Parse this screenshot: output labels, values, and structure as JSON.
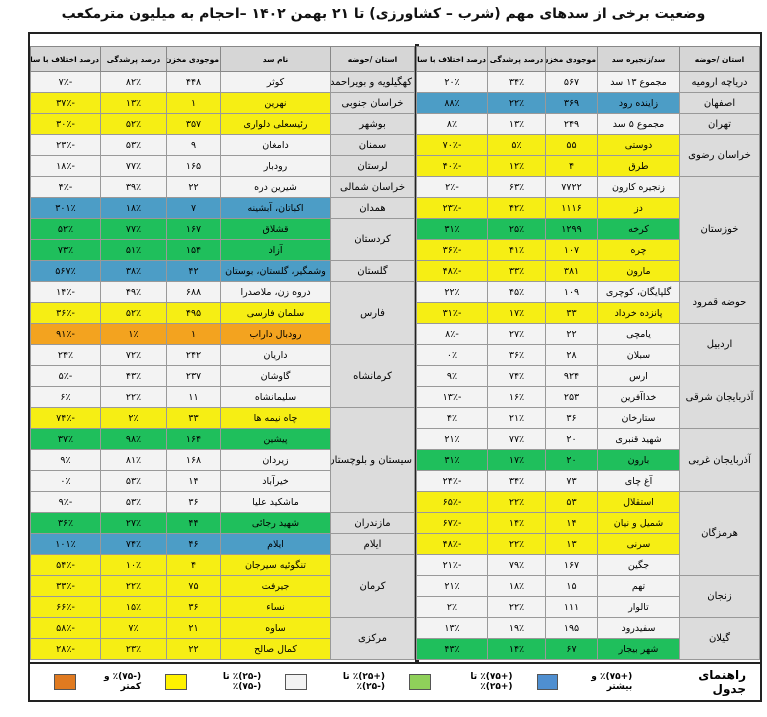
{
  "title": "وضعیت برخی از سدهای مهم (شرب – کشاورزی) تا ۲۱ بهمن ۱۴۰۲ –احجام به میلیون مترمکعب",
  "colors": {
    "white": "#f3f3f3",
    "yellow": "#f6ee14",
    "green": "#1fbf5c",
    "blue": "#4c9dc6",
    "orange": "#f3a31f"
  },
  "right_table": {
    "headers": [
      "استان /حوضه",
      "سد/زنجیره سد",
      "موجودی مخزن",
      "درصد پرشدگی",
      "درصد اختلاف با سال قبل"
    ],
    "groups": [
      {
        "province": "دریاچه ارومیه",
        "dams": [
          {
            "name": "مجموع ۱۳ سد",
            "storage": "۵۶۷",
            "fill": "۳۴٪",
            "diff": "۲۰٪",
            "color": "white"
          }
        ]
      },
      {
        "province": "اصفهان",
        "dams": [
          {
            "name": "زاینده رود",
            "storage": "۳۶۹",
            "fill": "۲۲٪",
            "diff": "۸۸٪",
            "color": "blue"
          }
        ]
      },
      {
        "province": "تهران",
        "dams": [
          {
            "name": "مجموع ۵ سد",
            "storage": "۲۴۹",
            "fill": "۱۳٪",
            "diff": "۸٪",
            "color": "white"
          }
        ]
      },
      {
        "province": "خراسان رضوی",
        "dams": [
          {
            "name": "دوستی",
            "storage": "۵۵",
            "fill": "۵٪",
            "diff": "-۷۰٪",
            "color": "yellow"
          },
          {
            "name": "طرق",
            "storage": "۴",
            "fill": "۱۲٪",
            "diff": "-۴۰٪",
            "color": "yellow"
          }
        ]
      },
      {
        "province": "خوزستان",
        "dams": [
          {
            "name": "زنجیره کارون",
            "storage": "۷۷۲۲",
            "fill": "۶۳٪",
            "diff": "-۲٪",
            "color": "white"
          },
          {
            "name": "دز",
            "storage": "۱۱۱۶",
            "fill": "۴۲٪",
            "diff": "-۲۳٪",
            "color": "yellow"
          },
          {
            "name": "کرخه",
            "storage": "۱۲۹۹",
            "fill": "۲۵٪",
            "diff": "۳۱٪",
            "color": "green"
          },
          {
            "name": "چره",
            "storage": "۱۰۷",
            "fill": "۴۱٪",
            "diff": "-۳۶٪",
            "color": "yellow"
          },
          {
            "name": "مارون",
            "storage": "۳۸۱",
            "fill": "۳۳٪",
            "diff": "-۴۸٪",
            "color": "yellow"
          }
        ]
      },
      {
        "province": "حوضه قمرود",
        "dams": [
          {
            "name": "گلپایگان، کوچری",
            "storage": "۱۰۹",
            "fill": "۴۵٪",
            "diff": "۲۲٪",
            "color": "white"
          },
          {
            "name": "پانزده خرداد",
            "storage": "۳۳",
            "fill": "۱۷٪",
            "diff": "-۳۱٪",
            "color": "yellow"
          }
        ]
      },
      {
        "province": "اردبیل",
        "dams": [
          {
            "name": "یامچی",
            "storage": "۲۲",
            "fill": "۲۷٪",
            "diff": "-۸٪",
            "color": "white"
          },
          {
            "name": "سبلان",
            "storage": "۲۸",
            "fill": "۳۶٪",
            "diff": "۰٪",
            "color": "white"
          }
        ]
      },
      {
        "province": "آذربایجان شرقی",
        "dams": [
          {
            "name": "ارس",
            "storage": "۹۲۴",
            "fill": "۷۴٪",
            "diff": "۹٪",
            "color": "white"
          },
          {
            "name": "خداآفرین",
            "storage": "۲۵۳",
            "fill": "۱۶٪",
            "diff": "-۱۳٪",
            "color": "white"
          },
          {
            "name": "ستارخان",
            "storage": "۳۶",
            "fill": "۲۱٪",
            "diff": "۴٪",
            "color": "white"
          }
        ]
      },
      {
        "province": "آذربایجان غربی",
        "dams": [
          {
            "name": "شهید قنبری",
            "storage": "۲۰",
            "fill": "۷۷٪",
            "diff": "۲۱٪",
            "color": "white"
          },
          {
            "name": "بارون",
            "storage": "۲۰",
            "fill": "۱۷٪",
            "diff": "۳۱٪",
            "color": "green"
          },
          {
            "name": "آغ چای",
            "storage": "۷۳",
            "fill": "۳۴٪",
            "diff": "-۲۴٪",
            "color": "white"
          }
        ]
      },
      {
        "province": "هرمزگان",
        "dams": [
          {
            "name": "استقلال",
            "storage": "۵۳",
            "fill": "۲۲٪",
            "diff": "-۶۵٪",
            "color": "yellow"
          },
          {
            "name": "شمیل و نیان",
            "storage": "۱۴",
            "fill": "۱۴٪",
            "diff": "-۶۷٪",
            "color": "yellow"
          },
          {
            "name": "سرنی",
            "storage": "۱۳",
            "fill": "۲۲٪",
            "diff": "-۴۸٪",
            "color": "yellow"
          },
          {
            "name": "جگین",
            "storage": "۱۶۷",
            "fill": "۷۹٪",
            "diff": "-۲۱٪",
            "color": "white"
          }
        ]
      },
      {
        "province": "زنجان",
        "dams": [
          {
            "name": "تهم",
            "storage": "۱۵",
            "fill": "۱۸٪",
            "diff": "۲۱٪",
            "color": "white"
          },
          {
            "name": "تالوار",
            "storage": "۱۱۱",
            "fill": "۲۲٪",
            "diff": "۲٪",
            "color": "white"
          }
        ]
      },
      {
        "province": "گیلان",
        "dams": [
          {
            "name": "سفیدرود",
            "storage": "۱۹۵",
            "fill": "۱۹٪",
            "diff": "۱۳٪",
            "color": "white"
          },
          {
            "name": "شهر بیجار",
            "storage": "۶۷",
            "fill": "۱۴٪",
            "diff": "۴۳٪",
            "color": "green"
          }
        ]
      }
    ]
  },
  "left_table": {
    "headers": [
      "استان /حوضه",
      "نام سد",
      "موجودی مخزن",
      "درصد پرشدگی",
      "درصد اختلاف با سال قبل"
    ],
    "groups": [
      {
        "province": "کهگیلویه و بویراحمد",
        "dams": [
          {
            "name": "کوثر",
            "storage": "۴۴۸",
            "fill": "۸۲٪",
            "diff": "-۷٪",
            "color": "white"
          }
        ]
      },
      {
        "province": "خراسان جنوبی",
        "dams": [
          {
            "name": "نهرین",
            "storage": "۱",
            "fill": "۱۳٪",
            "diff": "-۳۷٪",
            "color": "yellow"
          }
        ]
      },
      {
        "province": "بوشهر",
        "dams": [
          {
            "name": "رئیسعلی دلواری",
            "storage": "۳۵۷",
            "fill": "۵۲٪",
            "diff": "-۳۰٪",
            "color": "yellow"
          }
        ]
      },
      {
        "province": "سمنان",
        "dams": [
          {
            "name": "دامغان",
            "storage": "۹",
            "fill": "۵۳٪",
            "diff": "-۲۳٪",
            "color": "white"
          }
        ]
      },
      {
        "province": "لرستان",
        "dams": [
          {
            "name": "رودبار",
            "storage": "۱۶۵",
            "fill": "۷۷٪",
            "diff": "-۱۸٪",
            "color": "white"
          }
        ]
      },
      {
        "province": "خراسان شمالی",
        "dams": [
          {
            "name": "شیرین دره",
            "storage": "۲۲",
            "fill": "۳۹٪",
            "diff": "-۴٪",
            "color": "white"
          }
        ]
      },
      {
        "province": "همدان",
        "dams": [
          {
            "name": "اکباتان، آبشینه",
            "storage": "۷",
            "fill": "۱۸٪",
            "diff": "۳۰۱٪",
            "color": "blue"
          }
        ]
      },
      {
        "province": "کردستان",
        "dams": [
          {
            "name": "قشلاق",
            "storage": "۱۶۷",
            "fill": "۷۷٪",
            "diff": "۵۲٪",
            "color": "green"
          },
          {
            "name": "آزاد",
            "storage": "۱۵۴",
            "fill": "۵۱٪",
            "diff": "۷۳٪",
            "color": "green"
          }
        ]
      },
      {
        "province": "گلستان",
        "dams": [
          {
            "name": "وشمگیر، گلستان، بوستان",
            "storage": "۴۲",
            "fill": "۳۸٪",
            "diff": "۵۶۷٪",
            "color": "blue"
          }
        ]
      },
      {
        "province": "فارس",
        "dams": [
          {
            "name": "دروه زن، ملاصدرا",
            "storage": "۶۸۸",
            "fill": "۴۹٪",
            "diff": "-۱۴٪",
            "color": "white"
          },
          {
            "name": "سلمان فارسی",
            "storage": "۴۹۵",
            "fill": "۵۲٪",
            "diff": "-۳۶٪",
            "color": "yellow"
          },
          {
            "name": "رودبال داراب",
            "storage": "۱",
            "fill": "۱٪",
            "diff": "-۹۱٪",
            "color": "orange"
          }
        ]
      },
      {
        "province": "کرمانشاه",
        "dams": [
          {
            "name": "داریان",
            "storage": "۲۴۲",
            "fill": "۷۲٪",
            "diff": "۲۴٪",
            "color": "white"
          },
          {
            "name": "گاوشان",
            "storage": "۲۳۷",
            "fill": "۴۳٪",
            "diff": "-۵٪",
            "color": "white"
          },
          {
            "name": "سلیمانشاه",
            "storage": "۱۱",
            "fill": "۲۲٪",
            "diff": "۶٪",
            "color": "white"
          }
        ]
      },
      {
        "province": "سیستان و بلوچستان",
        "dams": [
          {
            "name": "چاه نیمه ها",
            "storage": "۳۳",
            "fill": "۲٪",
            "diff": "-۷۴٪",
            "color": "yellow"
          },
          {
            "name": "پیشین",
            "storage": "۱۶۴",
            "fill": "۹۸٪",
            "diff": "۳۷٪",
            "color": "green"
          },
          {
            "name": "زیردان",
            "storage": "۱۶۸",
            "fill": "۸۱٪",
            "diff": "۹٪",
            "color": "white"
          },
          {
            "name": "خیرآباد",
            "storage": "۱۴",
            "fill": "۵۳٪",
            "diff": "۰٪",
            "color": "white"
          },
          {
            "name": "ماشکید علیا",
            "storage": "۳۶",
            "fill": "۵۳٪",
            "diff": "-۹٪",
            "color": "white"
          }
        ]
      },
      {
        "province": "مازندران",
        "dams": [
          {
            "name": "شهید رجائی",
            "storage": "۴۴",
            "fill": "۲۷٪",
            "diff": "۳۶٪",
            "color": "green"
          }
        ]
      },
      {
        "province": "ایلام",
        "dams": [
          {
            "name": "ایلام",
            "storage": "۴۶",
            "fill": "۷۴٪",
            "diff": "۱۰۱٪",
            "color": "blue"
          }
        ]
      },
      {
        "province": "کرمان",
        "dams": [
          {
            "name": "تنگوئیه سیرجان",
            "storage": "۴",
            "fill": "۱۰٪",
            "diff": "-۵۴٪",
            "color": "yellow"
          },
          {
            "name": "جیرفت",
            "storage": "۷۵",
            "fill": "۲۲٪",
            "diff": "-۳۳٪",
            "color": "yellow"
          },
          {
            "name": "نساء",
            "storage": "۳۶",
            "fill": "۱۵٪",
            "diff": "-۶۶٪",
            "color": "yellow"
          }
        ]
      },
      {
        "province": "مرکزی",
        "dams": [
          {
            "name": "ساوه",
            "storage": "۲۱",
            "fill": "۷٪",
            "diff": "-۵۸٪",
            "color": "yellow"
          },
          {
            "name": "کمال صالح",
            "storage": "۲۲",
            "fill": "۲۳٪",
            "diff": "-۲۸٪",
            "color": "yellow"
          }
        ]
      }
    ]
  },
  "legend": {
    "title": "راهنمای جدول",
    "items": [
      {
        "label": "(+۷۵)٪ و بیشتر",
        "color": "#4f8fd0"
      },
      {
        "label": "(+۷۵)٪ تا (+۲۵)٪",
        "color": "#8fd05a"
      },
      {
        "label": "(+۲۵)٪ تا (-۲۵)٪",
        "color": "#f3f3f3"
      },
      {
        "label": "(-۲۵)٪ تا (-۷۵)٪",
        "color": "#fff200"
      },
      {
        "label": "(-۷۵)٪ و کمتر",
        "color": "#e07a20"
      }
    ]
  }
}
